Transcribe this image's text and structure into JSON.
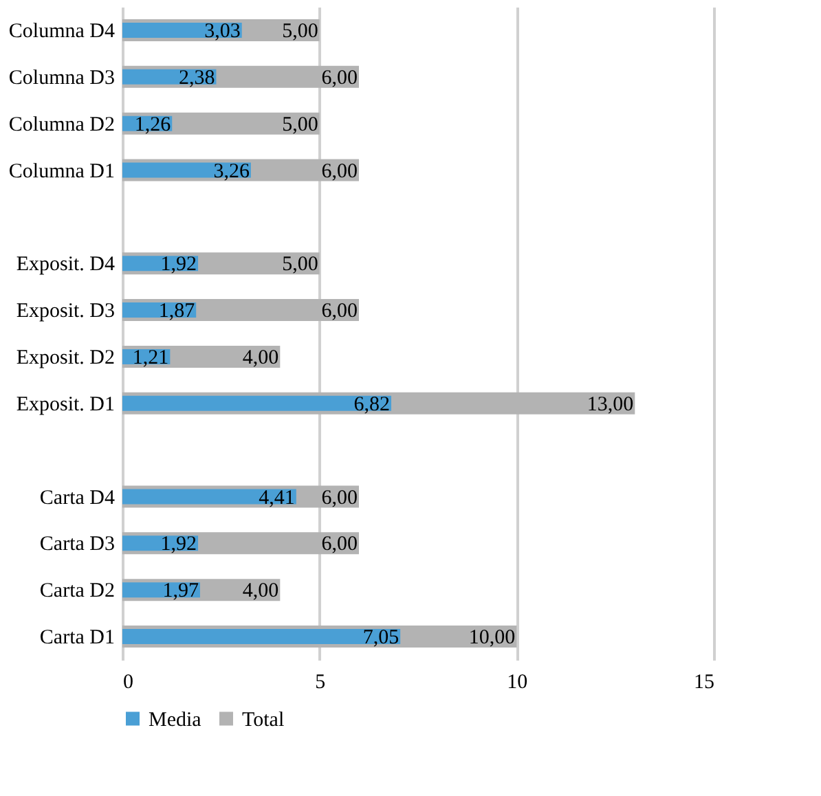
{
  "chart_data": {
    "type": "bar",
    "orientation": "horizontal",
    "categories": [
      "Columna D4",
      "Columna D3",
      "Columna D2",
      "Columna D1",
      null,
      "Exposit. D4",
      "Exposit. D3",
      "Exposit. D2",
      "Exposit. D1",
      null,
      "Carta D4",
      "Carta D3",
      "Carta D2",
      "Carta D1"
    ],
    "series": [
      {
        "name": "Media",
        "color": "#4a9fd5",
        "values": [
          3.03,
          2.38,
          1.26,
          3.26,
          null,
          1.92,
          1.87,
          1.21,
          6.82,
          null,
          4.41,
          1.92,
          1.97,
          7.05
        ],
        "value_labels": [
          "3,03",
          "2,38",
          "1,26",
          "3,26",
          null,
          "1,92",
          "1,87",
          "1,21",
          "6,82",
          null,
          "4,41",
          "1,92",
          "1,97",
          "7,05"
        ]
      },
      {
        "name": "Total",
        "color": "#b3b3b3",
        "values": [
          5,
          6,
          5,
          6,
          null,
          5,
          6,
          4,
          13,
          null,
          6,
          6,
          4,
          10
        ],
        "value_labels": [
          "5,00",
          "6,00",
          "5,00",
          "6,00",
          null,
          "5,00",
          "6,00",
          "4,00",
          "13,00",
          null,
          "6,00",
          "6,00",
          "4,00",
          "10,00"
        ]
      }
    ],
    "xlim": [
      0,
      15
    ],
    "xticks": [
      0,
      5,
      10,
      15
    ],
    "grid": "x",
    "legend": "bottom"
  }
}
